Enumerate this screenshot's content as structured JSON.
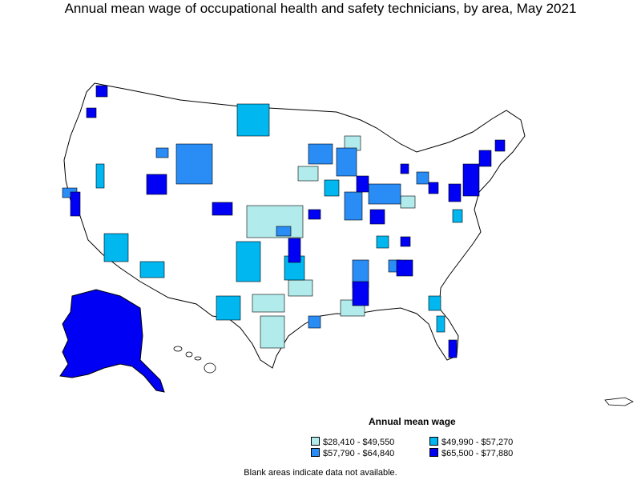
{
  "title": "Annual mean wage of occupational health and safety technicians, by area, May 2021",
  "legend": {
    "title": "Annual mean wage",
    "items": [
      {
        "label": "$28,410 - $49,550",
        "color": "#b2ebeb"
      },
      {
        "label": "$49,990 - $57,270",
        "color": "#00b7f0"
      },
      {
        "label": "$57,790 - $64,840",
        "color": "#2a8cf5"
      },
      {
        "label": "$65,500 - $77,880",
        "color": "#0000f5"
      }
    ]
  },
  "note": "Blank areas indicate data not available."
}
